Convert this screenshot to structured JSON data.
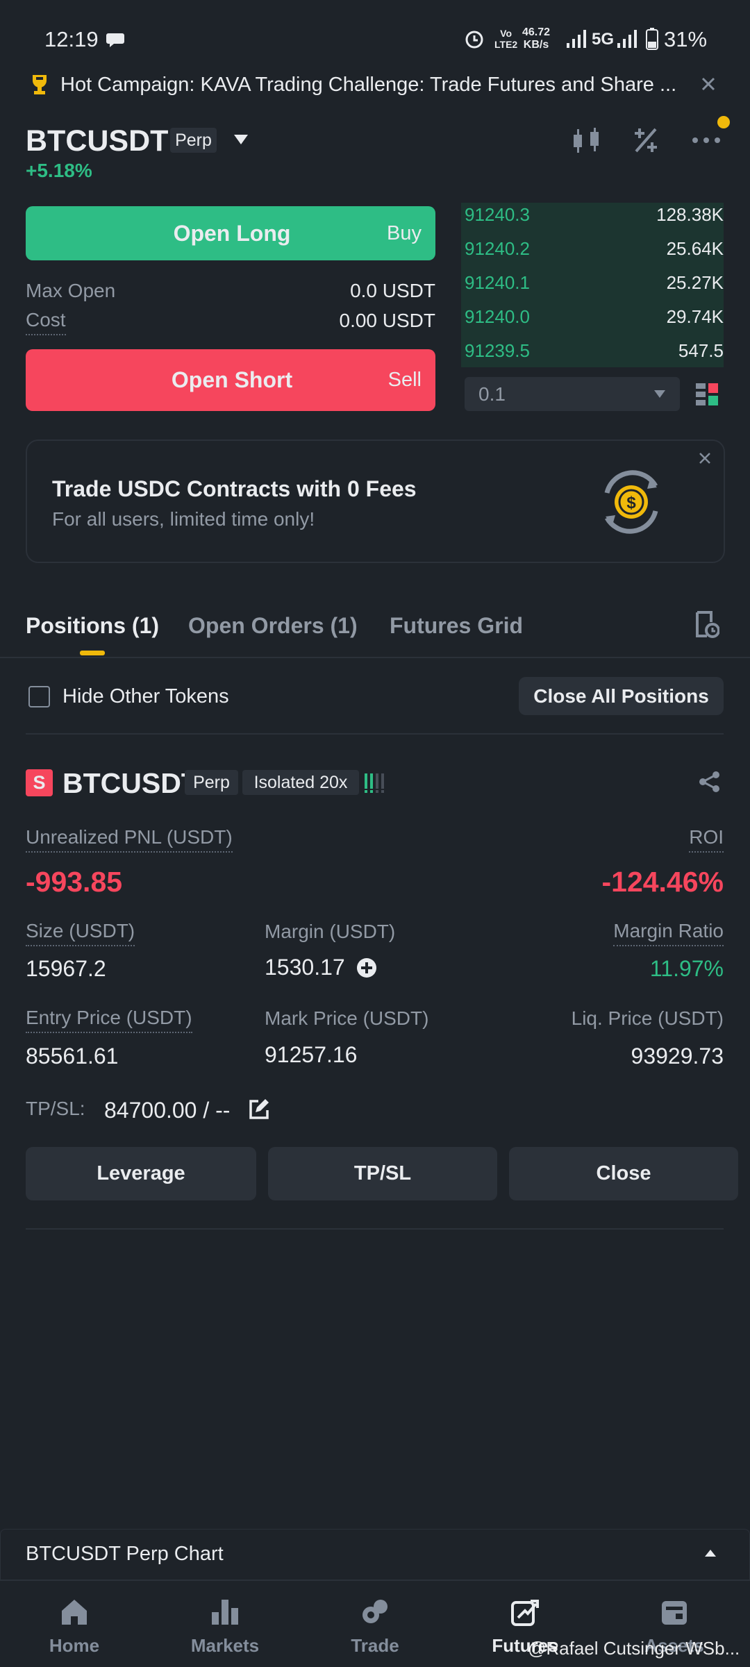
{
  "status_bar": {
    "time": "12:19",
    "volte_top": "Vo",
    "volte_bottom": "LTE2",
    "speed_value": "46.72",
    "speed_unit": "KB/s",
    "network": "5G",
    "battery": "31%"
  },
  "banner": {
    "text": "Hot Campaign: KAVA Trading Challenge: Trade Futures and Share ..."
  },
  "header": {
    "symbol": "BTCUSDT",
    "badge": "Perp",
    "change": "+5.18%"
  },
  "order_panel": {
    "open_long": "Open Long",
    "buy": "Buy",
    "max_open_label": "Max Open",
    "max_open_value": "0.0 USDT",
    "cost_label": "Cost",
    "cost_value": "0.00 USDT",
    "open_short": "Open Short",
    "sell": "Sell"
  },
  "order_book": {
    "rows": [
      {
        "price": "91240.3",
        "amount": "128.38K"
      },
      {
        "price": "91240.2",
        "amount": "25.64K"
      },
      {
        "price": "91240.1",
        "amount": "25.27K"
      },
      {
        "price": "91240.0",
        "amount": "29.74K"
      },
      {
        "price": "91239.5",
        "amount": "547.5"
      }
    ],
    "step": "0.1"
  },
  "promo": {
    "title": "Trade USDC Contracts with 0 Fees",
    "subtitle": "For all users, limited time only!"
  },
  "tabs": [
    "Positions (1)",
    "Open Orders (1)",
    "Futures Grid"
  ],
  "filters": {
    "hide_other_tokens": "Hide Other Tokens",
    "close_all": "Close All Positions"
  },
  "position": {
    "side": "S",
    "symbol": "BTCUSDT",
    "type": "Perp",
    "margin_mode": "Isolated 20x",
    "pnl_label": "Unrealized PNL (USDT)",
    "pnl_value": "-993.85",
    "roi_label": "ROI",
    "roi_value": "-124.46%",
    "size_label": "Size (USDT)",
    "size_value": "15967.2",
    "margin_label": "Margin (USDT)",
    "margin_value": "1530.17",
    "margin_ratio_label": "Margin Ratio",
    "margin_ratio_value": "11.97%",
    "entry_label": "Entry Price (USDT)",
    "entry_value": "85561.61",
    "mark_label": "Mark Price (USDT)",
    "mark_value": "91257.16",
    "liq_label": "Liq. Price (USDT)",
    "liq_value": "93929.73",
    "tpsl_label": "TP/SL:",
    "tpsl_value": "84700.00 / --",
    "buttons": [
      "Leverage",
      "TP/SL",
      "Close"
    ]
  },
  "chart_bar": {
    "title": "BTCUSDT Perp Chart"
  },
  "nav": [
    "Home",
    "Markets",
    "Trade",
    "Futures",
    "Assets"
  ],
  "watermark": "@Rafael Cutsinger WSb..."
}
